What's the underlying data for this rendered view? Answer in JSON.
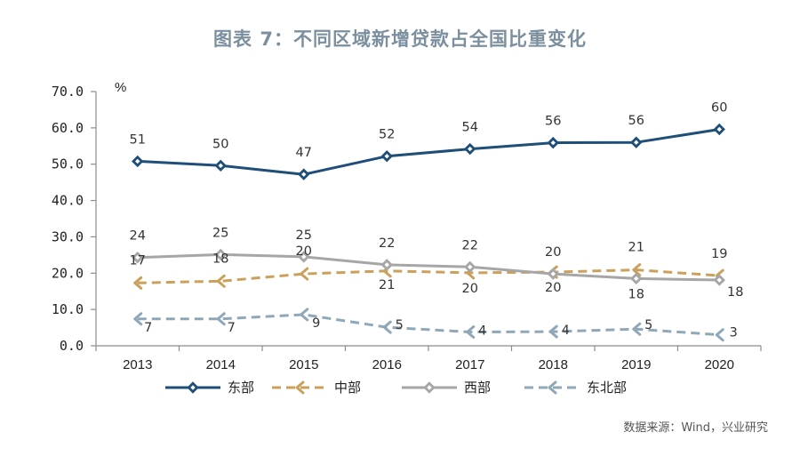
{
  "title": "图表 7：不同区域新增贷款占全国比重变化",
  "source": "数据来源：Wind，兴业研究",
  "chart_data": {
    "type": "line",
    "unit_label": "%",
    "x": [
      "2013",
      "2014",
      "2015",
      "2016",
      "2017",
      "2018",
      "2019",
      "2020"
    ],
    "ylim": [
      0,
      70
    ],
    "yticks": [
      "0.0",
      "10.0",
      "20.0",
      "30.0",
      "40.0",
      "50.0",
      "60.0",
      "70.0"
    ],
    "grid": false,
    "legend_position": "bottom",
    "series": [
      {
        "name": "东部",
        "values": [
          50.8,
          49.6,
          47.2,
          52.2,
          54.2,
          55.9,
          56.0,
          59.6
        ],
        "labels": [
          "51",
          "50",
          "47",
          "52",
          "54",
          "56",
          "56",
          "60"
        ],
        "color": "#1f4e79",
        "dash": "solid",
        "marker": "diamond",
        "label_side": "above"
      },
      {
        "name": "中部",
        "values": [
          17.3,
          17.8,
          19.8,
          20.6,
          20.1,
          20.3,
          20.9,
          19.3
        ],
        "labels": [
          "17",
          "18",
          "20",
          "21",
          "20",
          "20",
          "21",
          "19"
        ],
        "color": "#c9a15c",
        "dash": "dashed",
        "marker": "arrow",
        "label_side": "mixed"
      },
      {
        "name": "西部",
        "values": [
          24.3,
          25.1,
          24.5,
          22.3,
          21.7,
          19.8,
          18.5,
          18.1
        ],
        "labels": [
          "24",
          "25",
          "25",
          "22",
          "22",
          "20",
          "18",
          "18"
        ],
        "color": "#a6a6a6",
        "dash": "solid",
        "marker": "diamond",
        "label_side": "mixed"
      },
      {
        "name": "东北部",
        "values": [
          7.4,
          7.4,
          8.6,
          5.1,
          3.8,
          3.9,
          4.6,
          3.0
        ],
        "labels": [
          "7",
          "7",
          "9",
          "5",
          "4",
          "4",
          "5",
          "3"
        ],
        "color": "#8fa8b8",
        "dash": "dashed",
        "marker": "arrow",
        "label_side": "right"
      }
    ]
  }
}
